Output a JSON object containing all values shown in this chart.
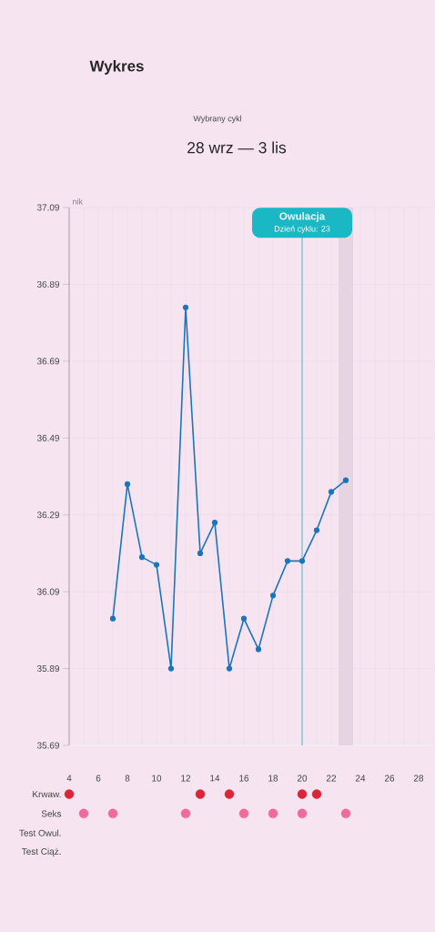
{
  "chart_data": [
    {
      "type": "line",
      "title": "Wykres",
      "subtitle": "Wybrany cykl",
      "ylabel": "nik",
      "annotations": [
        "28 wrz — 3 lis",
        "Dzień cyklu: 23"
      ],
      "x": [
        7,
        8,
        9,
        10,
        11,
        12,
        13,
        14,
        15,
        16,
        17,
        18,
        19,
        20,
        21,
        22,
        23
      ],
      "series": [
        {
          "color": "#1b75bb",
          "values": [
            36.02,
            36.37,
            36.18,
            36.16,
            35.89,
            36.83,
            36.19,
            36.27,
            35.89,
            36.02,
            35.94,
            36.08,
            36.17,
            36.17,
            36.25,
            36.35,
            36.38
          ]
        }
      ],
      "xlim": [
        4,
        29
      ],
      "xticks": [
        4,
        6,
        8,
        10,
        12,
        14,
        16,
        18,
        20,
        22,
        24,
        26,
        28
      ],
      "ylim": [
        35.69,
        37.09
      ],
      "yticks": [
        35.69,
        35.89,
        36.09,
        36.29,
        36.49,
        36.69,
        36.89,
        37.09
      ],
      "grid": true,
      "marker": "circle",
      "ref_lines": [
        {
          "axis": "x",
          "value": 20,
          "label": "Owulacja",
          "color": "#1ab8c4"
        }
      ],
      "bands": [
        {
          "axis": "x",
          "from": 22.5,
          "to": 23.5,
          "color": "#e6d4e3"
        }
      ]
    },
    {
      "type": "scatter",
      "orientation": "horizontal",
      "xlim": [
        4,
        29
      ],
      "tick_labels": "y",
      "marker": "circle",
      "categories": [
        "Krwaw.",
        "Seks",
        "Test Owul.",
        "Test Ciąż."
      ],
      "series": [
        {
          "color": "#d8263a",
          "values": [
            4,
            null,
            null,
            null
          ]
        },
        {
          "color": "#d8263a",
          "values": [
            13,
            null,
            null,
            null
          ]
        },
        {
          "color": "#d8263a",
          "values": [
            15,
            null,
            null,
            null
          ]
        },
        {
          "color": "#d8263a",
          "values": [
            20,
            null,
            null,
            null
          ]
        },
        {
          "color": "#d8263a",
          "values": [
            21,
            null,
            null,
            null
          ]
        },
        {
          "color": "#f06a9a",
          "values": [
            null,
            5,
            null,
            null
          ]
        },
        {
          "color": "#f06a9a",
          "values": [
            null,
            7,
            null,
            null
          ]
        },
        {
          "color": "#f06a9a",
          "values": [
            null,
            12,
            null,
            null
          ]
        },
        {
          "color": "#f06a9a",
          "values": [
            null,
            16,
            null,
            null
          ]
        },
        {
          "color": "#f06a9a",
          "values": [
            null,
            18,
            null,
            null
          ]
        },
        {
          "color": "#f06a9a",
          "values": [
            null,
            20,
            null,
            null
          ]
        },
        {
          "color": "#f06a9a",
          "values": [
            null,
            23,
            null,
            null
          ]
        }
      ]
    }
  ]
}
